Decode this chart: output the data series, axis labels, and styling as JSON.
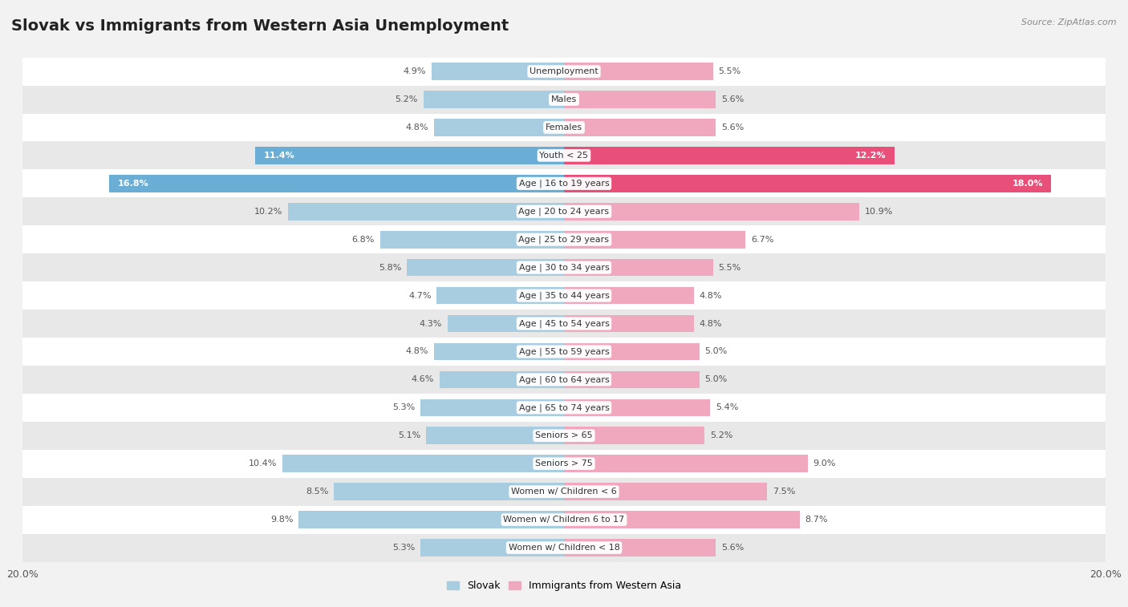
{
  "title": "Slovak vs Immigrants from Western Asia Unemployment",
  "source": "Source: ZipAtlas.com",
  "categories": [
    "Unemployment",
    "Males",
    "Females",
    "Youth < 25",
    "Age | 16 to 19 years",
    "Age | 20 to 24 years",
    "Age | 25 to 29 years",
    "Age | 30 to 34 years",
    "Age | 35 to 44 years",
    "Age | 45 to 54 years",
    "Age | 55 to 59 years",
    "Age | 60 to 64 years",
    "Age | 65 to 74 years",
    "Seniors > 65",
    "Seniors > 75",
    "Women w/ Children < 6",
    "Women w/ Children 6 to 17",
    "Women w/ Children < 18"
  ],
  "slovak": [
    4.9,
    5.2,
    4.8,
    11.4,
    16.8,
    10.2,
    6.8,
    5.8,
    4.7,
    4.3,
    4.8,
    4.6,
    5.3,
    5.1,
    10.4,
    8.5,
    9.8,
    5.3
  ],
  "immigrants": [
    5.5,
    5.6,
    5.6,
    12.2,
    18.0,
    10.9,
    6.7,
    5.5,
    4.8,
    4.8,
    5.0,
    5.0,
    5.4,
    5.2,
    9.0,
    7.5,
    8.7,
    5.6
  ],
  "slovak_color": "#a8cce0",
  "immigrant_color": "#f0a8be",
  "highlight_slovak_color": "#6aaed6",
  "highlight_immigrant_color": "#e8507a",
  "xlim": 20.0,
  "bar_height": 0.62,
  "row_bg_light": "#ffffff",
  "row_bg_dark": "#e8e8e8",
  "title_fontsize": 14,
  "label_fontsize": 8,
  "value_fontsize": 8,
  "legend_fontsize": 9
}
